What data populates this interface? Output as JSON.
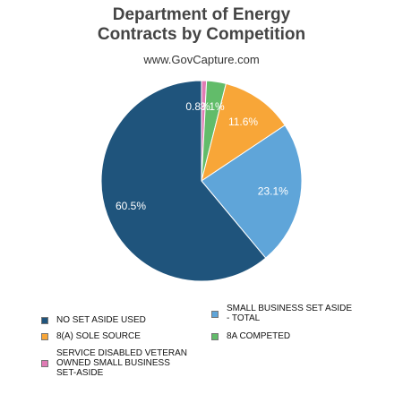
{
  "chart_data": {
    "type": "pie",
    "title_lines": [
      "Department of Energy",
      "Contracts by Competition"
    ],
    "subtitle": "www.GovCapture.com",
    "series": [
      {
        "name": "NO SET ASIDE USED",
        "value": 60.5,
        "label": "60.5%",
        "color": "#1f547c"
      },
      {
        "name": "SMALL BUSINESS SET ASIDE - TOTAL",
        "value": 23.1,
        "label": "23.1%",
        "color": "#5fa5d9"
      },
      {
        "name": "8(A) SOLE SOURCE",
        "value": 11.6,
        "label": "11.6%",
        "color": "#f8a638"
      },
      {
        "name": "8A COMPETED",
        "value": 3.1,
        "label": "3.1%",
        "color": "#62bc6a"
      },
      {
        "name": "SERVICE DISABLED VETERAN OWNED SMALL BUSINESS SET-ASIDE",
        "value": 0.8,
        "label": "0.8%",
        "color": "#e07bb5"
      }
    ],
    "legend": {
      "position": "bottom",
      "items": [
        {
          "label_lines": [
            "NO SET ASIDE USED"
          ],
          "color": "#1f547c"
        },
        {
          "label_lines": [
            "SMALL BUSINESS SET ASIDE",
            "- TOTAL"
          ],
          "color": "#5fa5d9"
        },
        {
          "label_lines": [
            "8(A) SOLE SOURCE"
          ],
          "color": "#f8a638"
        },
        {
          "label_lines": [
            "8A COMPETED"
          ],
          "color": "#62bc6a"
        },
        {
          "label_lines": [
            "SERVICE DISABLED VETERAN",
            "OWNED SMALL BUSINESS",
            "SET-ASIDE"
          ],
          "color": "#e07bb5"
        }
      ]
    },
    "start_angle": "12 o'clock",
    "direction": "clockwise"
  }
}
